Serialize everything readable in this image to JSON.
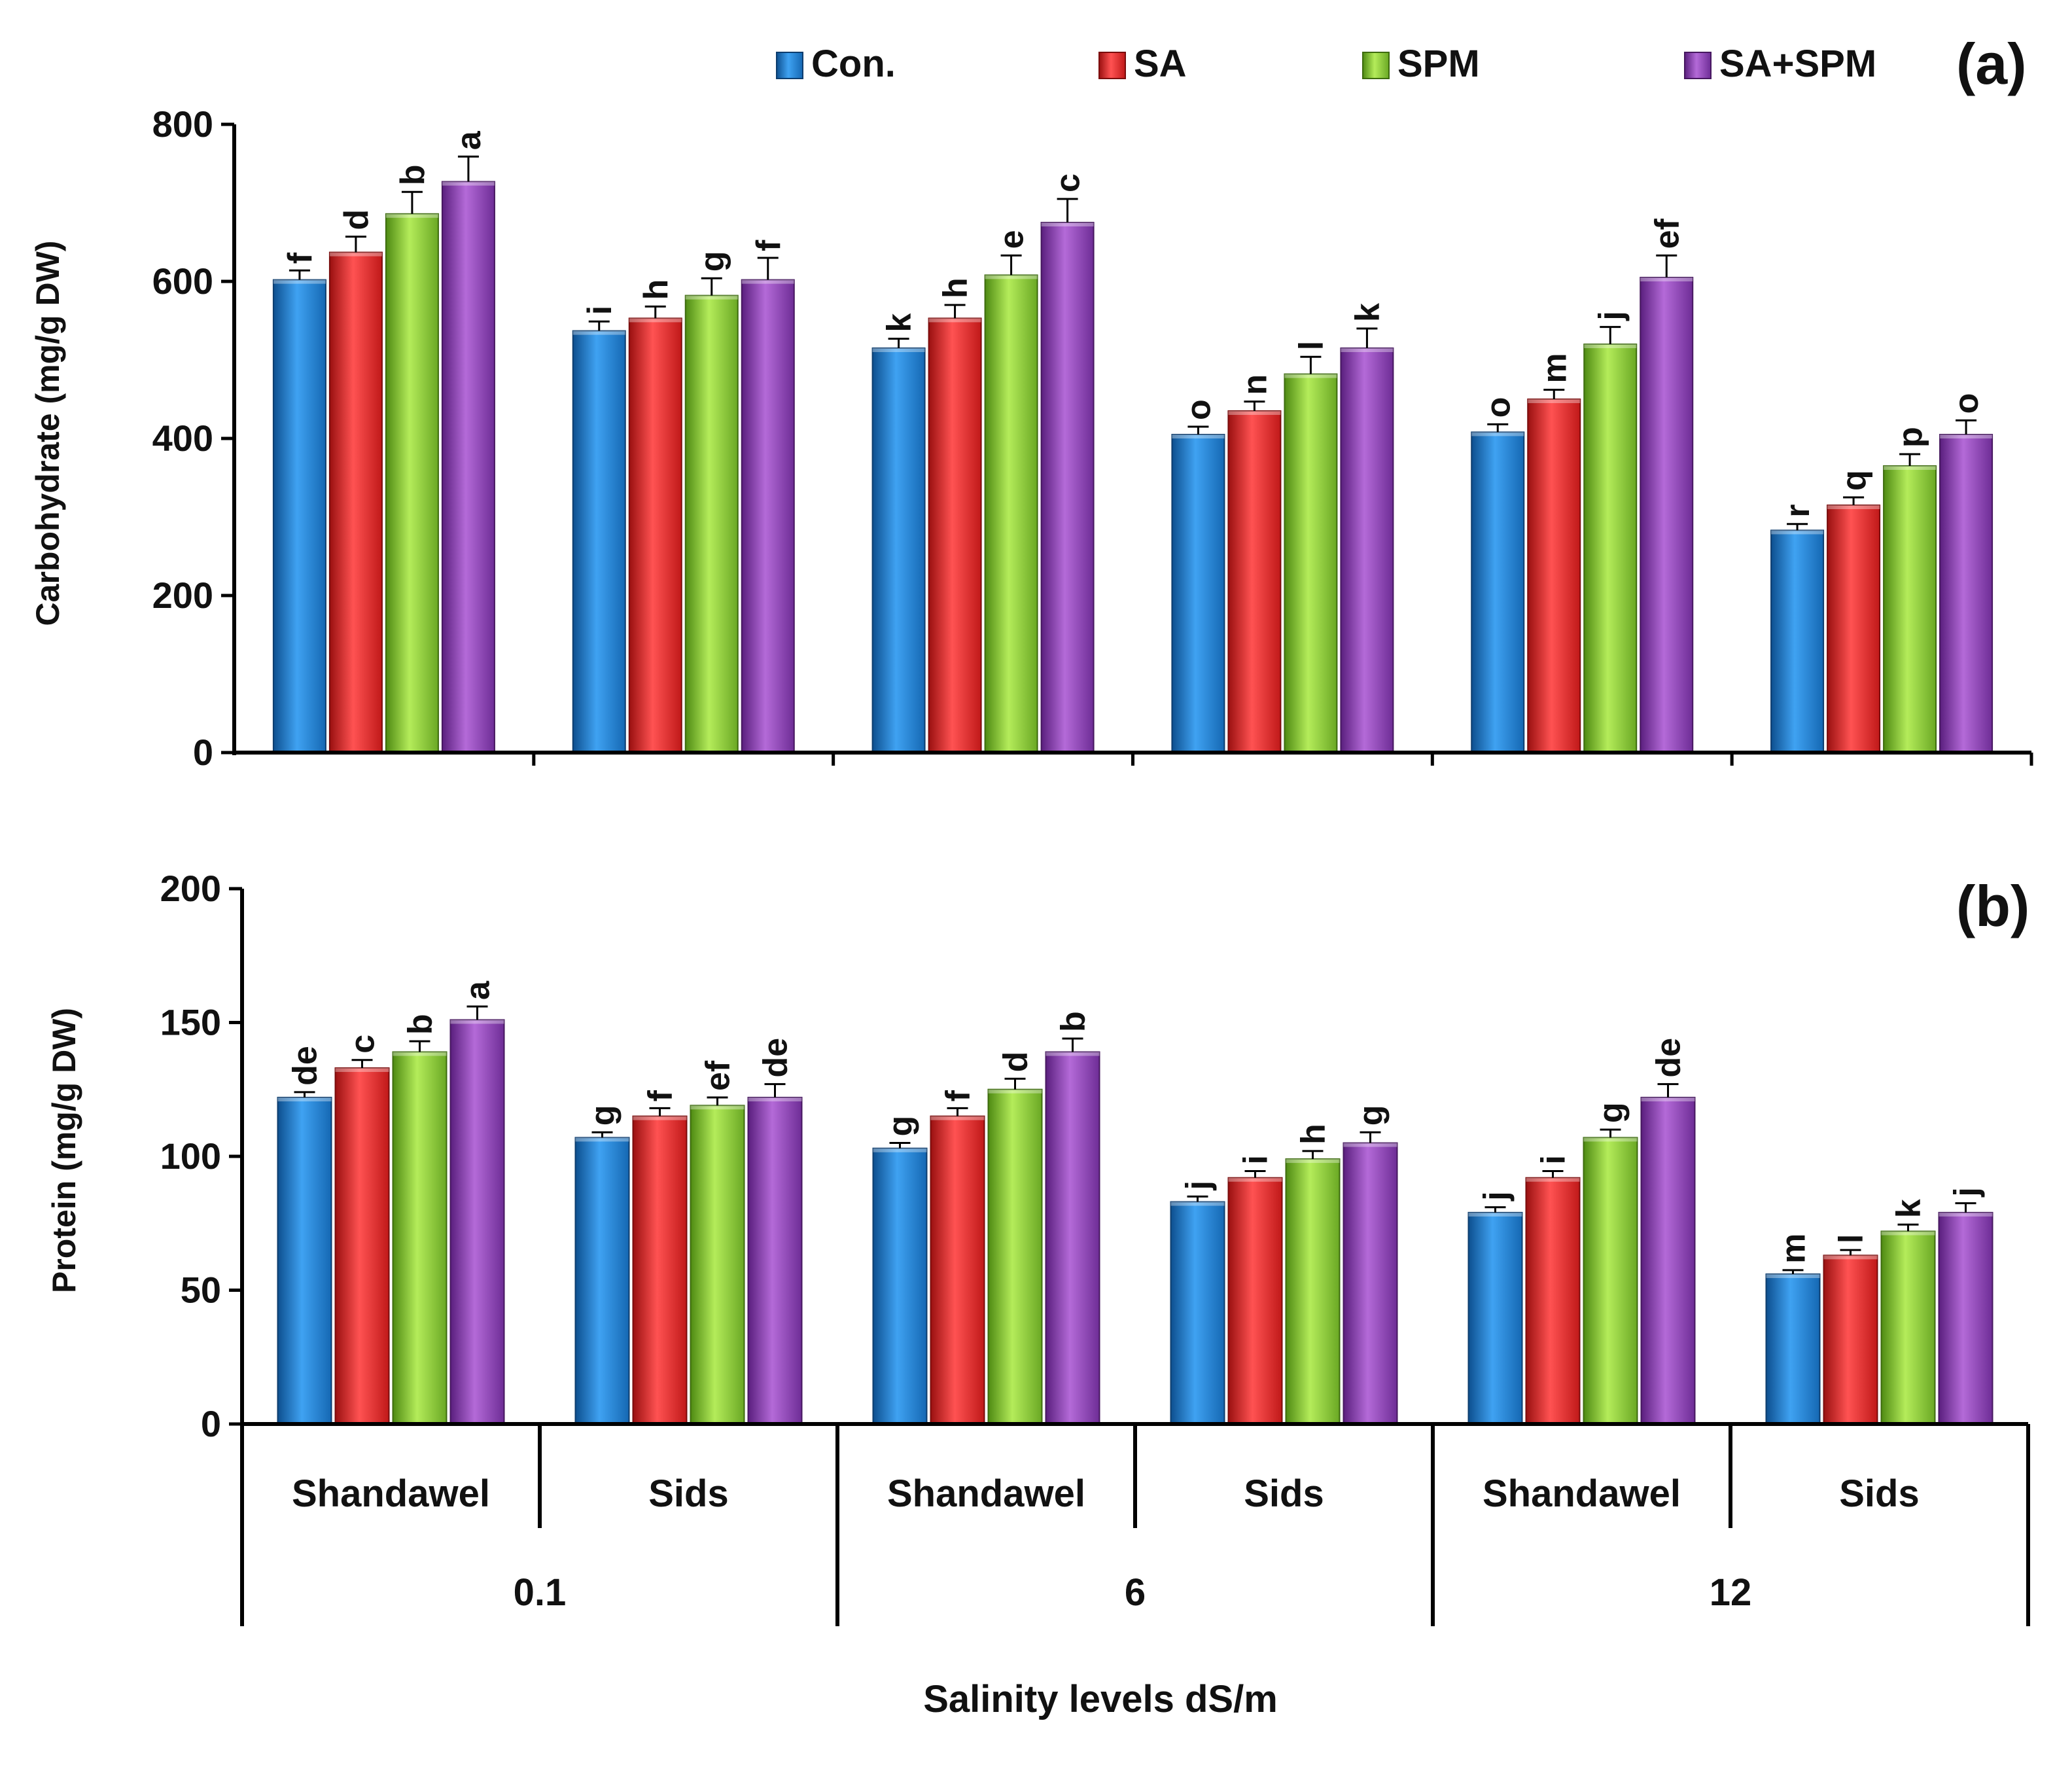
{
  "chart_data": [
    {
      "type": "bar",
      "panel_label": "(a)",
      "title": "",
      "xlabel": "",
      "ylabel": "Carbohydrate (mg/g DW)",
      "ylim": [
        0,
        800
      ],
      "yticks": [
        "0",
        "200",
        "400",
        "600",
        "800"
      ],
      "grid": false,
      "legend": [
        "Con.",
        "SA",
        "SPM",
        "SA+SPM"
      ],
      "legend_position": "top",
      "categories": [
        "Shandawel 0.1",
        "Sids 0.1",
        "Shandawel 6",
        "Sids 6",
        "Shandawel 12",
        "Sids 12"
      ],
      "series": [
        {
          "name": "Con.",
          "values": [
            602,
            537,
            515,
            405,
            408,
            283
          ],
          "errors": [
            12,
            12,
            12,
            10,
            10,
            8
          ],
          "letters": [
            "f",
            "i",
            "k",
            "o",
            "o",
            "r"
          ]
        },
        {
          "name": "SA",
          "values": [
            637,
            553,
            553,
            435,
            450,
            315
          ],
          "errors": [
            20,
            15,
            17,
            12,
            12,
            10
          ],
          "letters": [
            "d",
            "h",
            "h",
            "n",
            "m",
            "q"
          ]
        },
        {
          "name": "SPM",
          "values": [
            686,
            582,
            608,
            482,
            520,
            365
          ],
          "errors": [
            28,
            22,
            25,
            22,
            22,
            15
          ],
          "letters": [
            "b",
            "g",
            "e",
            "l",
            "j",
            "p"
          ]
        },
        {
          "name": "SA+SPM",
          "values": [
            727,
            602,
            675,
            515,
            605,
            405
          ],
          "errors": [
            32,
            28,
            30,
            25,
            28,
            18
          ],
          "letters": [
            "a",
            "f",
            "c",
            "k",
            "ef",
            "o"
          ]
        }
      ]
    },
    {
      "type": "bar",
      "panel_label": "(b)",
      "title": "",
      "xlabel": "Salinity levels dS/m",
      "ylabel": "Protein (mg/g DW)",
      "ylim": [
        0,
        200
      ],
      "yticks": [
        "0",
        "50",
        "100",
        "150",
        "200"
      ],
      "grid": false,
      "legend": [
        "Con.",
        "SA",
        "SPM",
        "SA+SPM"
      ],
      "legend_position": "top",
      "categories": [
        "Shandawel",
        "Sids",
        "Shandawel",
        "Sids",
        "Shandawel",
        "Sids"
      ],
      "groups": [
        "0.1",
        "6",
        "12"
      ],
      "series": [
        {
          "name": "Con.",
          "values": [
            122,
            107,
            103,
            83,
            79,
            56
          ],
          "errors": [
            2,
            2,
            2,
            2,
            2,
            1.5
          ],
          "letters": [
            "de",
            "g",
            "g",
            "j",
            "j",
            "m"
          ]
        },
        {
          "name": "SA",
          "values": [
            133,
            115,
            115,
            92,
            92,
            63
          ],
          "errors": [
            3,
            3,
            3,
            2.5,
            2.5,
            2
          ],
          "letters": [
            "c",
            "f",
            "f",
            "i",
            "i",
            "l"
          ]
        },
        {
          "name": "SPM",
          "values": [
            139,
            119,
            125,
            99,
            107,
            72
          ],
          "errors": [
            4,
            3,
            4,
            3,
            3,
            2.5
          ],
          "letters": [
            "b",
            "ef",
            "d",
            "h",
            "g",
            "k"
          ]
        },
        {
          "name": "SA+SPM",
          "values": [
            151,
            122,
            139,
            105,
            122,
            79
          ],
          "errors": [
            5,
            5,
            5,
            4,
            5,
            3.5
          ],
          "letters": [
            "a",
            "de",
            "b",
            "g",
            "de",
            "j"
          ]
        }
      ]
    }
  ],
  "legend_colors": [
    "#1f7fd0",
    "#e52b2b",
    "#86c233",
    "#8c3fb0"
  ]
}
